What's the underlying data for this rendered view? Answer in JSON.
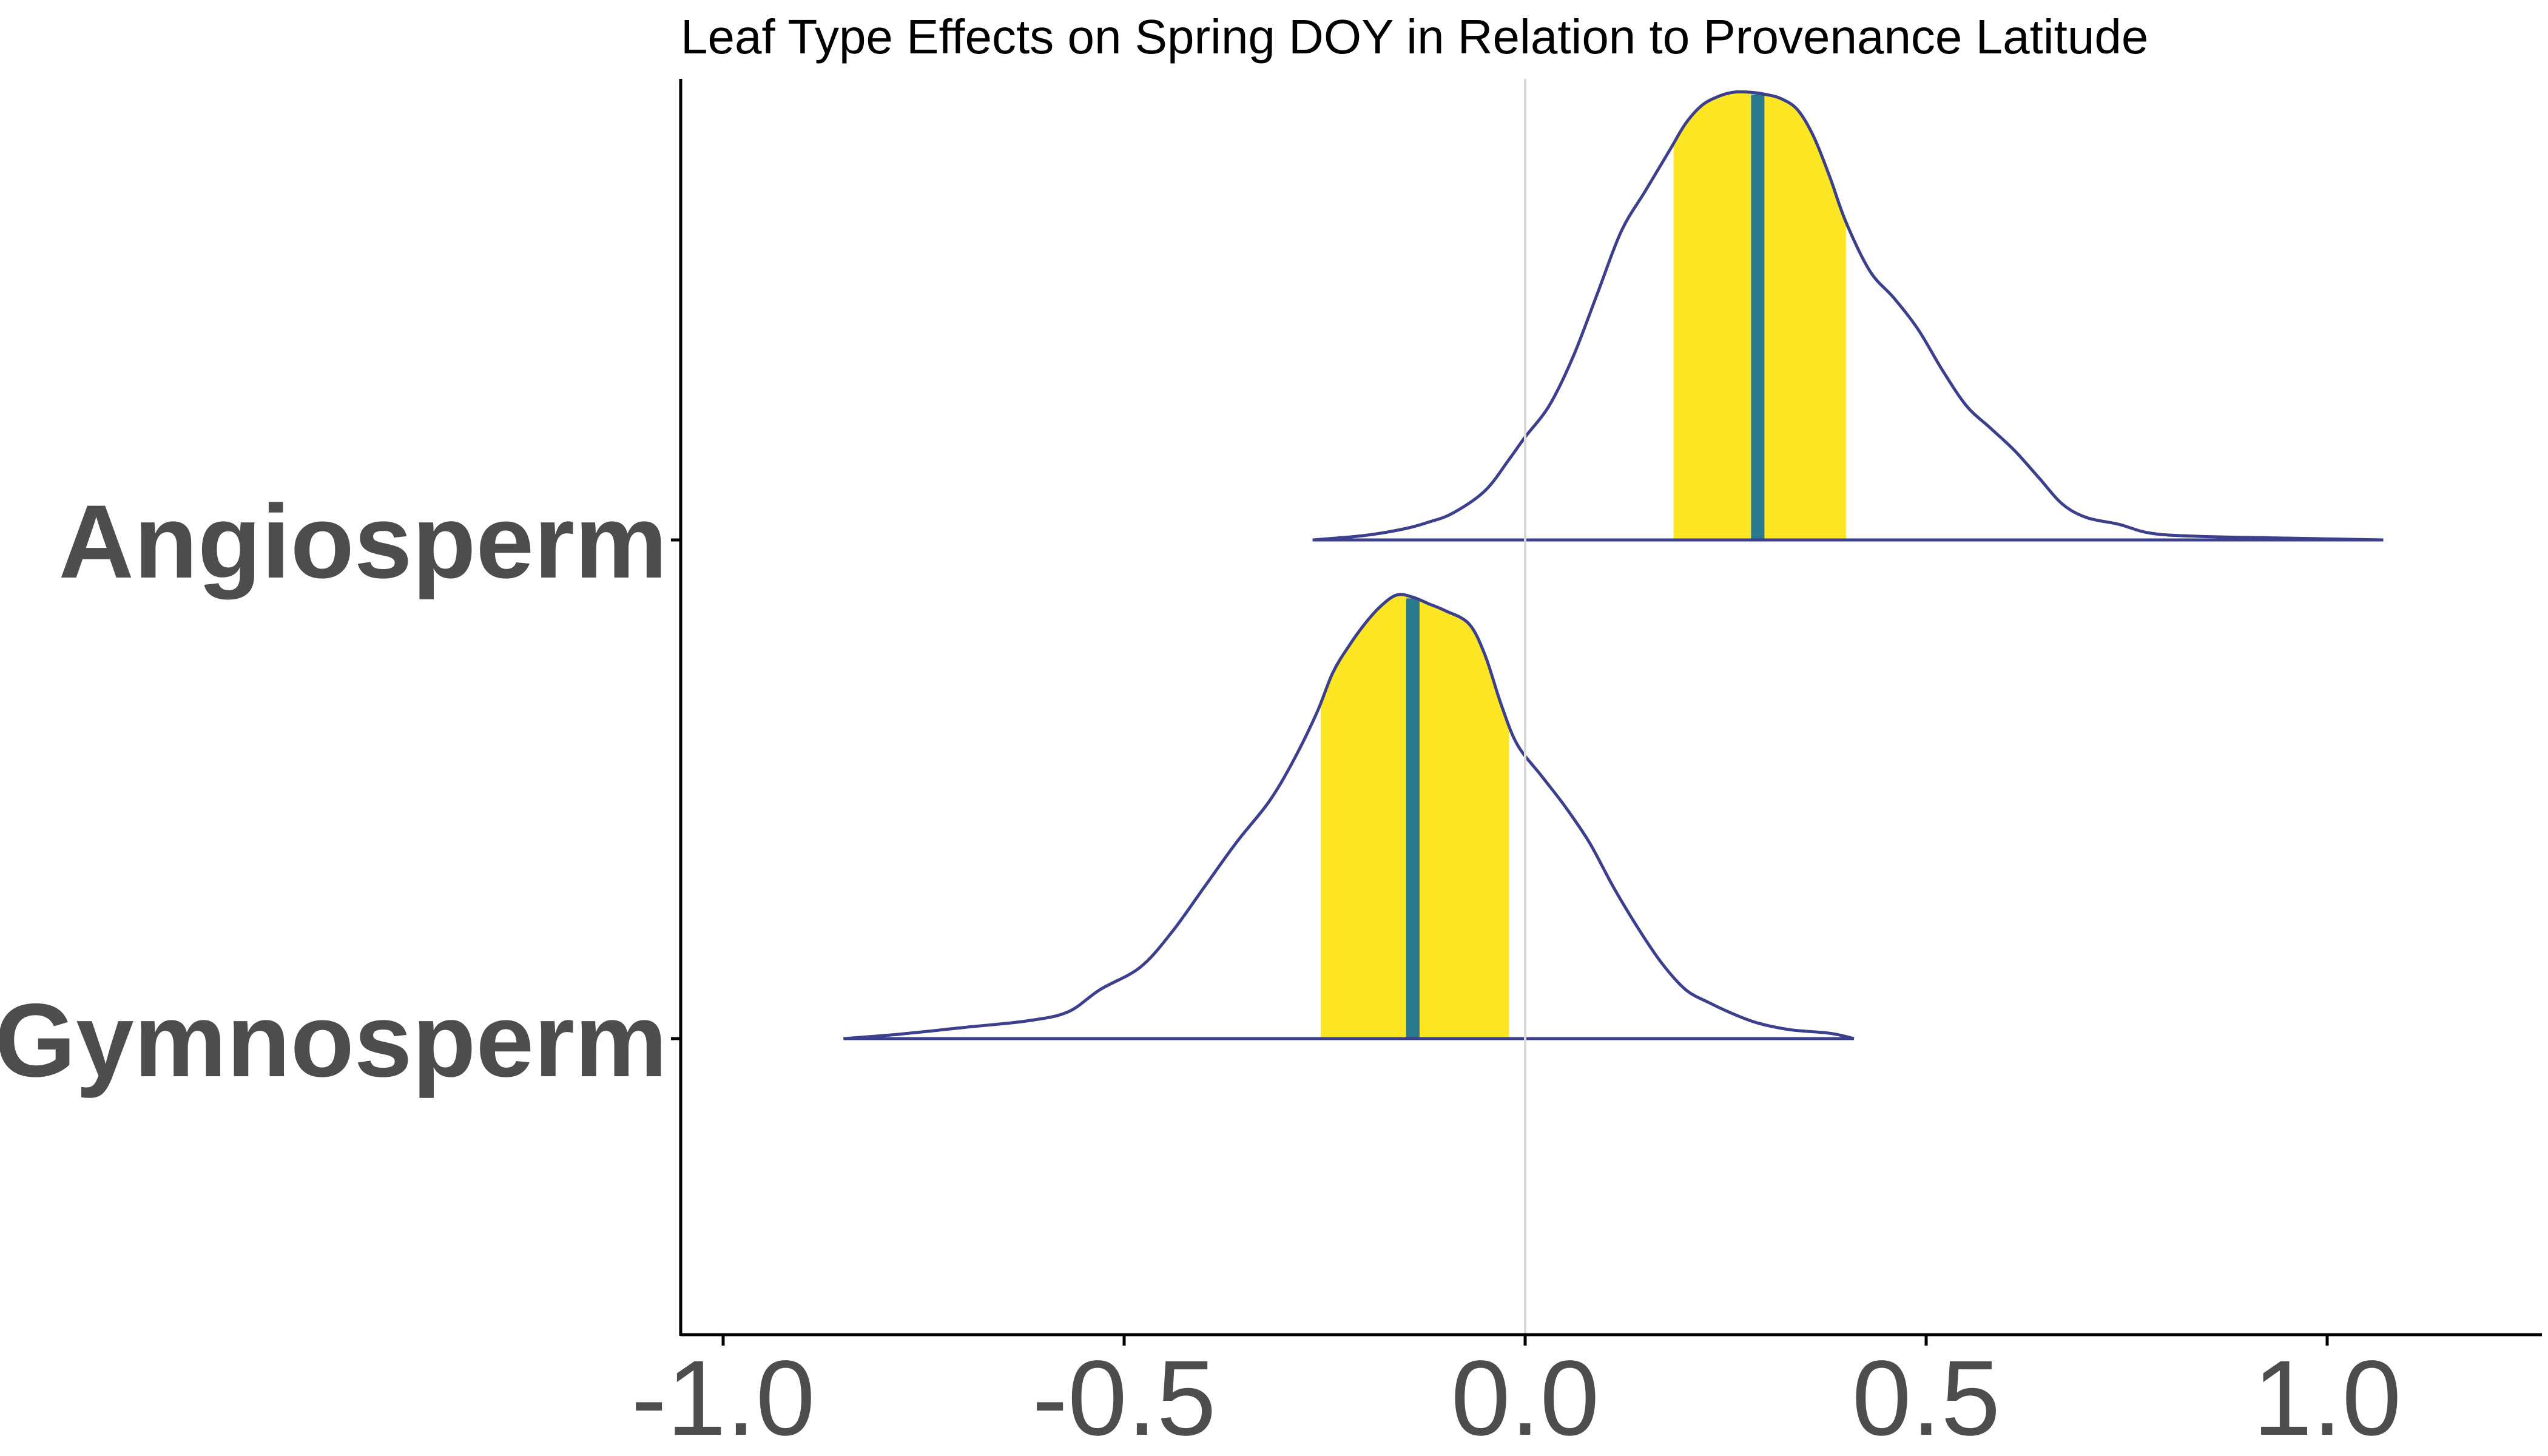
{
  "chart_data": {
    "type": "density_ridges",
    "title": "Leaf Type Effects on Spring DOY in Relation to Provenance Latitude",
    "xlabel": "",
    "ylabel": "",
    "xlim": [
      -1.05,
      1.27
    ],
    "x_ticks": [
      -1.0,
      -0.5,
      0.0,
      0.5,
      1.0
    ],
    "x_tick_labels": [
      "-1.0",
      "-0.5",
      "0.0",
      "0.5",
      "1.0"
    ],
    "reference_line_x": 0.0,
    "grid": false,
    "legend": "none",
    "colors": {
      "outline": "#3b3f8c",
      "interval_fill": "#fde725",
      "median_line": "#2a788e",
      "reference_line": "#d9d9d9",
      "axis": "#000000",
      "label": "#4d4d4d"
    },
    "series": [
      {
        "name": "Angiosperm",
        "median": 0.29,
        "interval": [
          0.185,
          0.4
        ],
        "density": [
          [
            -0.265,
            0.0
          ],
          [
            -0.2,
            0.01
          ],
          [
            -0.15,
            0.025
          ],
          [
            -0.12,
            0.04
          ],
          [
            -0.09,
            0.06
          ],
          [
            -0.05,
            0.11
          ],
          [
            -0.02,
            0.18
          ],
          [
            0.0,
            0.23
          ],
          [
            0.03,
            0.3
          ],
          [
            0.06,
            0.41
          ],
          [
            0.09,
            0.55
          ],
          [
            0.12,
            0.69
          ],
          [
            0.15,
            0.78
          ],
          [
            0.18,
            0.87
          ],
          [
            0.2,
            0.93
          ],
          [
            0.22,
            0.97
          ],
          [
            0.24,
            0.99
          ],
          [
            0.26,
            1.0
          ],
          [
            0.28,
            1.0
          ],
          [
            0.3,
            0.995
          ],
          [
            0.32,
            0.985
          ],
          [
            0.34,
            0.96
          ],
          [
            0.36,
            0.9
          ],
          [
            0.38,
            0.81
          ],
          [
            0.4,
            0.71
          ],
          [
            0.43,
            0.6
          ],
          [
            0.46,
            0.54
          ],
          [
            0.49,
            0.47
          ],
          [
            0.52,
            0.38
          ],
          [
            0.55,
            0.3
          ],
          [
            0.58,
            0.25
          ],
          [
            0.61,
            0.2
          ],
          [
            0.64,
            0.14
          ],
          [
            0.67,
            0.08
          ],
          [
            0.7,
            0.05
          ],
          [
            0.74,
            0.035
          ],
          [
            0.78,
            0.015
          ],
          [
            0.84,
            0.008
          ],
          [
            0.95,
            0.004
          ],
          [
            1.07,
            0.0
          ]
        ]
      },
      {
        "name": "Gymnosperm",
        "median": -0.14,
        "interval": [
          -0.255,
          -0.02
        ],
        "density": [
          [
            -0.85,
            0.0
          ],
          [
            -0.78,
            0.01
          ],
          [
            -0.7,
            0.025
          ],
          [
            -0.62,
            0.04
          ],
          [
            -0.57,
            0.06
          ],
          [
            -0.53,
            0.11
          ],
          [
            -0.48,
            0.16
          ],
          [
            -0.44,
            0.24
          ],
          [
            -0.4,
            0.34
          ],
          [
            -0.36,
            0.44
          ],
          [
            -0.32,
            0.53
          ],
          [
            -0.29,
            0.62
          ],
          [
            -0.26,
            0.73
          ],
          [
            -0.24,
            0.82
          ],
          [
            -0.22,
            0.88
          ],
          [
            -0.2,
            0.93
          ],
          [
            -0.18,
            0.97
          ],
          [
            -0.16,
            0.995
          ],
          [
            -0.14,
            0.99
          ],
          [
            -0.12,
            0.975
          ],
          [
            -0.1,
            0.96
          ],
          [
            -0.07,
            0.93
          ],
          [
            -0.05,
            0.86
          ],
          [
            -0.03,
            0.75
          ],
          [
            -0.01,
            0.66
          ],
          [
            0.02,
            0.59
          ],
          [
            0.05,
            0.52
          ],
          [
            0.08,
            0.44
          ],
          [
            0.11,
            0.34
          ],
          [
            0.14,
            0.25
          ],
          [
            0.17,
            0.17
          ],
          [
            0.2,
            0.11
          ],
          [
            0.23,
            0.08
          ],
          [
            0.26,
            0.055
          ],
          [
            0.29,
            0.035
          ],
          [
            0.33,
            0.02
          ],
          [
            0.38,
            0.012
          ],
          [
            0.41,
            0.0
          ]
        ]
      }
    ]
  }
}
